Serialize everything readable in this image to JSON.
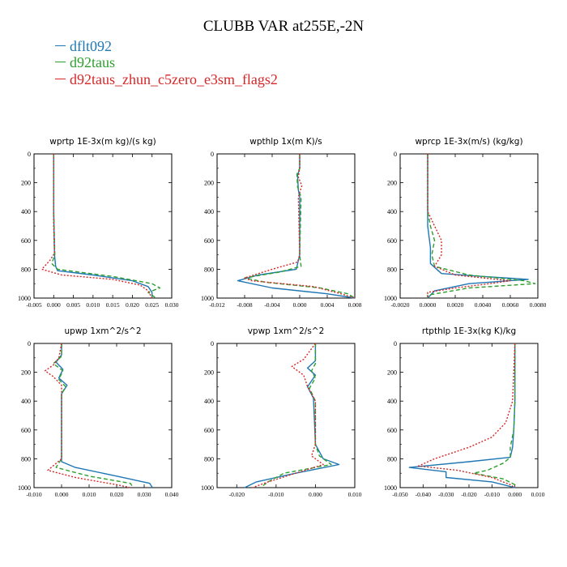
{
  "title": "CLUBB VAR at255E,-2N",
  "legend": [
    {
      "label": "dflt092",
      "color": "#1f77b4"
    },
    {
      "label": "d92taus",
      "color": "#2ca02c"
    },
    {
      "label": "d92taus_zhun_c5zero_e3sm_flags2",
      "color": "#d62728"
    }
  ],
  "chart_data": [
    {
      "type": "line",
      "title": "wprtp  1E-3x(m kg)/(s kg)",
      "xlim": [
        -0.005,
        0.03
      ],
      "ylim": [
        0,
        1000
      ],
      "xticks": [
        "-0.005",
        "0.000",
        "0.005",
        "0.010",
        "0.015",
        "0.020",
        "0.025",
        "0.030"
      ],
      "xtick_values": [
        -0.005,
        0.0,
        0.005,
        0.01,
        0.015,
        0.02,
        0.025,
        0.03
      ],
      "yticks": [
        "0",
        "200",
        "400",
        "600",
        "800",
        "1000"
      ],
      "ytick_values": [
        0,
        200,
        400,
        600,
        800,
        1000
      ],
      "series": [
        {
          "name": "dflt092",
          "points": [
            [
              0.0,
              0
            ],
            [
              0.0,
              400
            ],
            [
              0.0002,
              700
            ],
            [
              0.0005,
              780
            ],
            [
              0.001,
              810
            ],
            [
              0.01,
              840
            ],
            [
              0.02,
              880
            ],
            [
              0.024,
              920
            ],
            [
              0.025,
              960
            ],
            [
              0.025,
              1000
            ]
          ]
        },
        {
          "name": "d92taus",
          "points": [
            [
              0.0,
              0
            ],
            [
              0.0,
              400
            ],
            [
              0.0003,
              700
            ],
            [
              -0.0005,
              760
            ],
            [
              0.001,
              800
            ],
            [
              0.015,
              850
            ],
            [
              0.025,
              900
            ],
            [
              0.027,
              930
            ],
            [
              0.024,
              960
            ],
            [
              0.026,
              1000
            ]
          ]
        },
        {
          "name": "d92taus_zhun_c5zero_e3sm_flags2",
          "points": [
            [
              0.0,
              0
            ],
            [
              0.0,
              500
            ],
            [
              0.0002,
              690
            ],
            [
              -0.001,
              740
            ],
            [
              -0.003,
              800
            ],
            [
              0.002,
              840
            ],
            [
              0.015,
              870
            ],
            [
              0.022,
              910
            ],
            [
              0.024,
              950
            ],
            [
              0.025,
              1000
            ]
          ]
        }
      ]
    },
    {
      "type": "line",
      "title": "wpthlp  1x(m K)/s",
      "xlim": [
        -0.012,
        0.008
      ],
      "ylim": [
        0,
        1000
      ],
      "xticks": [
        "-0.012",
        "-0.008",
        "-0.004",
        "0.000",
        "0.004",
        "0.008"
      ],
      "xtick_values": [
        -0.012,
        -0.008,
        -0.004,
        0.0,
        0.004,
        0.008
      ],
      "yticks": [
        "0",
        "200",
        "400",
        "600",
        "800",
        "1000"
      ],
      "ytick_values": [
        0,
        200,
        400,
        600,
        800,
        1000
      ],
      "series": [
        {
          "name": "dflt092",
          "points": [
            [
              0.0,
              0
            ],
            [
              0.0,
              100
            ],
            [
              -0.0003,
              150
            ],
            [
              -0.0002,
              250
            ],
            [
              0.0,
              300
            ],
            [
              0.0,
              700
            ],
            [
              -0.0005,
              800
            ],
            [
              -0.006,
              840
            ],
            [
              -0.009,
              880
            ],
            [
              -0.004,
              930
            ],
            [
              0.004,
              970
            ],
            [
              0.008,
              1000
            ]
          ]
        },
        {
          "name": "d92taus",
          "points": [
            [
              0.0,
              0
            ],
            [
              0.0,
              100
            ],
            [
              -0.0004,
              140
            ],
            [
              -0.0003,
              230
            ],
            [
              0.0002,
              300
            ],
            [
              0.0,
              700
            ],
            [
              0.0002,
              780
            ],
            [
              -0.003,
              820
            ],
            [
              -0.008,
              860
            ],
            [
              -0.005,
              890
            ],
            [
              0.003,
              930
            ],
            [
              0.007,
              970
            ],
            [
              0.008,
              1000
            ]
          ]
        },
        {
          "name": "d92taus_zhun_c5zero_e3sm_flags2",
          "points": [
            [
              0.0,
              0
            ],
            [
              0.0,
              100
            ],
            [
              -0.0002,
              160
            ],
            [
              0.0003,
              220
            ],
            [
              -0.0002,
              300
            ],
            [
              0.0,
              700
            ],
            [
              -0.0003,
              750
            ],
            [
              -0.004,
              800
            ],
            [
              -0.008,
              860
            ],
            [
              -0.007,
              880
            ],
            [
              0.002,
              920
            ],
            [
              0.006,
              970
            ],
            [
              0.008,
              1000
            ]
          ]
        }
      ]
    },
    {
      "type": "line",
      "title": "wprcp  1E-3x(m/s) (kg/kg)",
      "xlim": [
        -0.002,
        0.008
      ],
      "ylim": [
        0,
        1000
      ],
      "xticks": [
        "-0.0020",
        "0.0000",
        "0.0020",
        "0.0040",
        "0.0060",
        "0.0080"
      ],
      "xtick_values": [
        -0.002,
        0.0,
        0.002,
        0.004,
        0.006,
        0.008
      ],
      "yticks": [
        "0",
        "200",
        "400",
        "600",
        "800",
        "1000"
      ],
      "ytick_values": [
        0,
        200,
        400,
        600,
        800,
        1000
      ],
      "series": [
        {
          "name": "dflt092",
          "points": [
            [
              0.0,
              0
            ],
            [
              0.0,
              500
            ],
            [
              0.0002,
              650
            ],
            [
              0.0002,
              760
            ],
            [
              0.001,
              830
            ],
            [
              0.004,
              850
            ],
            [
              0.0073,
              870
            ],
            [
              0.003,
              900
            ],
            [
              0.0005,
              950
            ],
            [
              0.0,
              1000
            ]
          ]
        },
        {
          "name": "d92taus",
          "points": [
            [
              0.0,
              0
            ],
            [
              0.0,
              400
            ],
            [
              0.0002,
              500
            ],
            [
              0.0005,
              600
            ],
            [
              0.0003,
              700
            ],
            [
              0.0005,
              780
            ],
            [
              0.003,
              840
            ],
            [
              0.007,
              880
            ],
            [
              0.0078,
              900
            ],
            [
              0.003,
              930
            ],
            [
              0.0,
              980
            ],
            [
              0.0,
              1000
            ]
          ]
        },
        {
          "name": "d92taus_zhun_c5zero_e3sm_flags2",
          "points": [
            [
              0.0,
              0
            ],
            [
              0.0,
              400
            ],
            [
              0.001,
              600
            ],
            [
              0.001,
              700
            ],
            [
              0.0005,
              780
            ],
            [
              0.002,
              840
            ],
            [
              0.006,
              880
            ],
            [
              0.0045,
              900
            ],
            [
              0.002,
              930
            ],
            [
              0.0,
              960
            ],
            [
              0.0,
              1000
            ]
          ]
        }
      ]
    },
    {
      "type": "line",
      "title": "upwp  1xm^2/s^2",
      "xlim": [
        -0.01,
        0.04
      ],
      "ylim": [
        0,
        1000
      ],
      "xticks": [
        "-0.010",
        "0.000",
        "0.010",
        "0.020",
        "0.030",
        "0.040"
      ],
      "xtick_values": [
        -0.01,
        0.0,
        0.01,
        0.02,
        0.03,
        0.04
      ],
      "yticks": [
        "0",
        "200",
        "400",
        "600",
        "800",
        "1000"
      ],
      "ytick_values": [
        0,
        200,
        400,
        600,
        800,
        1000
      ],
      "series": [
        {
          "name": "dflt092",
          "points": [
            [
              0.0,
              0
            ],
            [
              0.0,
              80
            ],
            [
              -0.002,
              130
            ],
            [
              0.0005,
              180
            ],
            [
              -0.001,
              240
            ],
            [
              0.002,
              290
            ],
            [
              0.0,
              350
            ],
            [
              0.0,
              820
            ],
            [
              0.005,
              860
            ],
            [
              0.02,
              920
            ],
            [
              0.032,
              970
            ],
            [
              0.033,
              1000
            ]
          ]
        },
        {
          "name": "d92taus",
          "points": [
            [
              0.0,
              0
            ],
            [
              0.0,
              90
            ],
            [
              -0.003,
              140
            ],
            [
              0.0005,
              190
            ],
            [
              -0.001,
              250
            ],
            [
              0.0015,
              300
            ],
            [
              0.0,
              350
            ],
            [
              0.0,
              800
            ],
            [
              -0.002,
              860
            ],
            [
              0.01,
              920
            ],
            [
              0.025,
              970
            ],
            [
              0.026,
              1000
            ]
          ]
        },
        {
          "name": "d92taus_zhun_c5zero_e3sm_flags2",
          "points": [
            [
              0.0,
              0
            ],
            [
              -0.001,
              100
            ],
            [
              -0.003,
              150
            ],
            [
              -0.006,
              190
            ],
            [
              -0.003,
              230
            ],
            [
              0.0,
              290
            ],
            [
              0.0,
              350
            ],
            [
              0.0,
              800
            ],
            [
              -0.005,
              880
            ],
            [
              0.005,
              930
            ],
            [
              0.02,
              980
            ],
            [
              0.025,
              1000
            ]
          ]
        }
      ]
    },
    {
      "type": "line",
      "title": "vpwp  1xm^2/s^2",
      "xlim": [
        -0.025,
        0.01
      ],
      "ylim": [
        0,
        1000
      ],
      "xticks": [
        "-0.020",
        "-0.010",
        "0.000",
        "0.010"
      ],
      "xtick_values": [
        -0.02,
        -0.01,
        0.0,
        0.01
      ],
      "yticks": [
        "0",
        "200",
        "400",
        "600",
        "800",
        "1000"
      ],
      "ytick_values": [
        0,
        200,
        400,
        600,
        800,
        1000
      ],
      "series": [
        {
          "name": "dflt092",
          "points": [
            [
              0.0,
              0
            ],
            [
              0.0,
              120
            ],
            [
              -0.002,
              170
            ],
            [
              0.0,
              220
            ],
            [
              -0.002,
              300
            ],
            [
              -0.0005,
              380
            ],
            [
              0.0,
              700
            ],
            [
              0.002,
              800
            ],
            [
              0.006,
              840
            ],
            [
              -0.005,
              900
            ],
            [
              -0.015,
              960
            ],
            [
              -0.018,
              1000
            ]
          ]
        },
        {
          "name": "d92taus",
          "points": [
            [
              0.0,
              0
            ],
            [
              0.0,
              140
            ],
            [
              -0.001,
              190
            ],
            [
              0.0,
              240
            ],
            [
              -0.0015,
              310
            ],
            [
              0.0,
              400
            ],
            [
              0.0,
              700
            ],
            [
              0.001,
              780
            ],
            [
              0.004,
              840
            ],
            [
              -0.008,
              900
            ],
            [
              -0.012,
              960
            ],
            [
              -0.014,
              1000
            ]
          ]
        },
        {
          "name": "d92taus_zhun_c5zero_e3sm_flags2",
          "points": [
            [
              0.0,
              0
            ],
            [
              -0.003,
              110
            ],
            [
              -0.006,
              160
            ],
            [
              -0.003,
              220
            ],
            [
              -0.002,
              300
            ],
            [
              0.0,
              400
            ],
            [
              0.0,
              700
            ],
            [
              -0.001,
              780
            ],
            [
              0.002,
              840
            ],
            [
              -0.005,
              900
            ],
            [
              -0.012,
              960
            ],
            [
              -0.016,
              1000
            ]
          ]
        }
      ]
    },
    {
      "type": "line",
      "title": "rtpthlp  1E-3x(kg K)/kg",
      "xlim": [
        -0.05,
        0.01
      ],
      "ylim": [
        0,
        1000
      ],
      "xticks": [
        "-0.050",
        "-0.040",
        "-0.030",
        "-0.020",
        "-0.010",
        "0.000",
        "0.010"
      ],
      "xtick_values": [
        -0.05,
        -0.04,
        -0.03,
        -0.02,
        -0.01,
        0.0,
        0.01
      ],
      "yticks": [
        "0",
        "200",
        "400",
        "600",
        "800",
        "1000"
      ],
      "ytick_values": [
        0,
        200,
        400,
        600,
        800,
        1000
      ],
      "series": [
        {
          "name": "dflt092",
          "points": [
            [
              0.0,
              0
            ],
            [
              0.0,
              400
            ],
            [
              -0.0005,
              600
            ],
            [
              -0.001,
              720
            ],
            [
              -0.002,
              790
            ],
            [
              -0.02,
              820
            ],
            [
              -0.046,
              860
            ],
            [
              -0.03,
              890
            ],
            [
              -0.03,
              930
            ],
            [
              -0.01,
              960
            ],
            [
              0.0,
              1000
            ]
          ]
        },
        {
          "name": "d92taus",
          "points": [
            [
              0.0,
              0
            ],
            [
              0.0,
              400
            ],
            [
              -0.0005,
              600
            ],
            [
              -0.002,
              720
            ],
            [
              -0.002,
              790
            ],
            [
              -0.005,
              830
            ],
            [
              -0.012,
              880
            ],
            [
              -0.018,
              900
            ],
            [
              -0.005,
              940
            ],
            [
              0.0,
              980
            ],
            [
              0.0,
              1000
            ]
          ]
        },
        {
          "name": "d92taus_zhun_c5zero_e3sm_flags2",
          "points": [
            [
              0.0,
              0
            ],
            [
              -0.001,
              400
            ],
            [
              -0.004,
              550
            ],
            [
              -0.01,
              650
            ],
            [
              -0.02,
              720
            ],
            [
              -0.035,
              800
            ],
            [
              -0.042,
              850
            ],
            [
              -0.025,
              880
            ],
            [
              -0.01,
              930
            ],
            [
              -0.002,
              980
            ],
            [
              0.0,
              1000
            ]
          ]
        }
      ]
    }
  ]
}
